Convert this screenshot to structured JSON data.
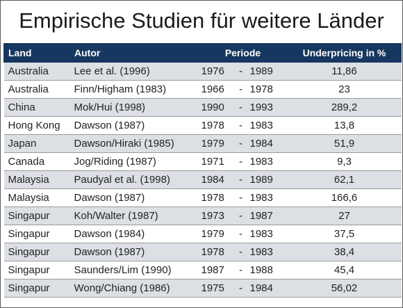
{
  "title": "Empirische Studien für weitere Länder",
  "headers": {
    "land": "Land",
    "autor": "Autor",
    "periode": "Periode",
    "underpricing": "Underpricing in %"
  },
  "rows": [
    {
      "land": "Australia",
      "autor": "Lee et al. (1996)",
      "start": "1976",
      "end": "1989",
      "underpricing": "11,86"
    },
    {
      "land": "Australia",
      "autor": "Finn/Higham (1983)",
      "start": "1966",
      "end": "1978",
      "underpricing": "23"
    },
    {
      "land": "China",
      "autor": "Mok/Hui (1998)",
      "start": "1990",
      "end": "1993",
      "underpricing": "289,2"
    },
    {
      "land": "Hong Kong",
      "autor": "Dawson (1987)",
      "start": "1978",
      "end": "1983",
      "underpricing": "13,8"
    },
    {
      "land": "Japan",
      "autor": "Dawson/Hiraki (1985)",
      "start": "1979",
      "end": "1984",
      "underpricing": "51,9"
    },
    {
      "land": "Canada",
      "autor": "Jog/Riding (1987)",
      "start": "1971",
      "end": "1983",
      "underpricing": "9,3"
    },
    {
      "land": "Malaysia",
      "autor": "Paudyal et al. (1998)",
      "start": "1984",
      "end": "1989",
      "underpricing": "62,1"
    },
    {
      "land": "Malaysia",
      "autor": "Dawson (1987)",
      "start": "1978",
      "end": "1983",
      "underpricing": "166,6"
    },
    {
      "land": "Singapur",
      "autor": "Koh/Walter (1987)",
      "start": "1973",
      "end": "1987",
      "underpricing": "27"
    },
    {
      "land": "Singapur",
      "autor": "Dawson (1984)",
      "start": "1979",
      "end": "1983",
      "underpricing": "37,5"
    },
    {
      "land": "Singapur",
      "autor": "Dawson (1987)",
      "start": "1978",
      "end": "1983",
      "underpricing": "38,4"
    },
    {
      "land": "Singapur",
      "autor": "Saunders/Lim (1990)",
      "start": "1987",
      "end": "1988",
      "underpricing": "45,4"
    },
    {
      "land": "Singapur",
      "autor": "Wong/Chiang (1986)",
      "start": "1975",
      "end": "1984",
      "underpricing": "56,02"
    }
  ],
  "period_separator": "-"
}
